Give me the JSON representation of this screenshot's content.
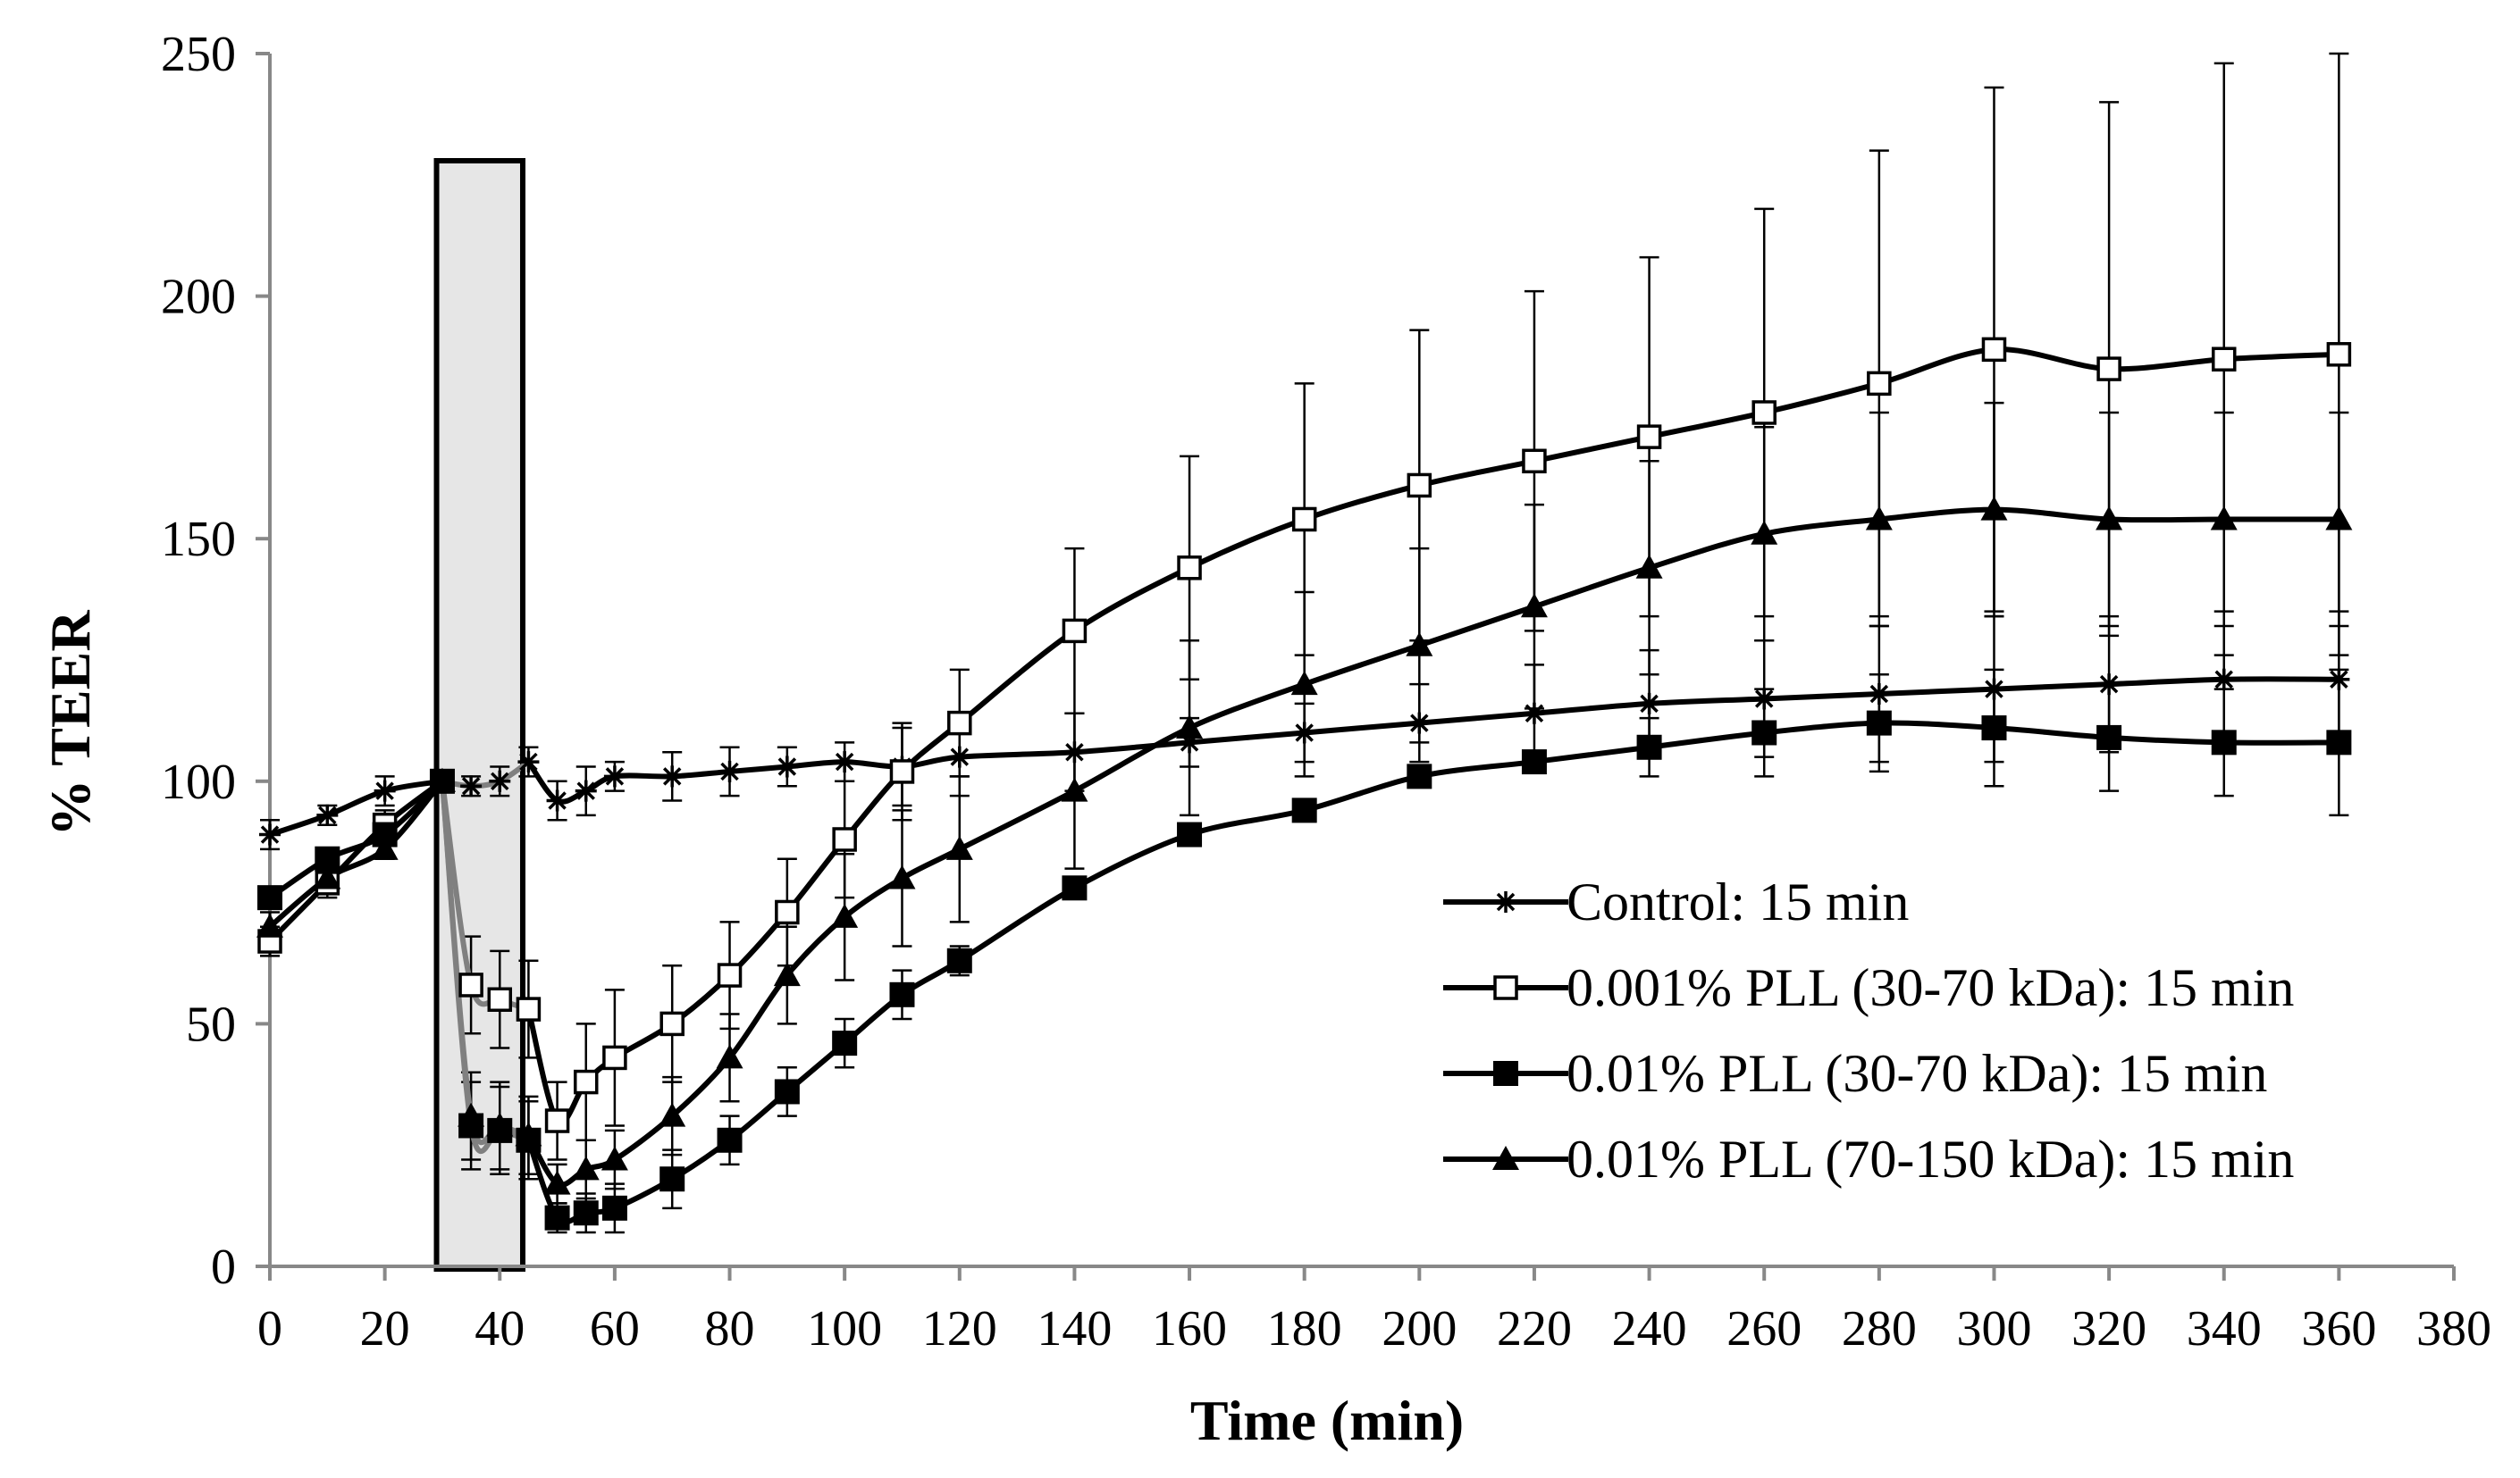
{
  "chart_data": {
    "type": "line",
    "title": "",
    "xlabel": "Time (min)",
    "ylabel": "% TEER",
    "xlim": [
      0,
      380
    ],
    "ylim": [
      0,
      250
    ],
    "xticks": [
      0,
      20,
      40,
      60,
      80,
      100,
      120,
      140,
      160,
      180,
      200,
      220,
      240,
      260,
      280,
      300,
      320,
      340,
      360,
      380
    ],
    "yticks": [
      0,
      50,
      100,
      150,
      200,
      250
    ],
    "grid": false,
    "legend_position": "lower-right",
    "treatment_window": {
      "start": 29,
      "end": 44,
      "fill": "#e6e6e6"
    },
    "series": [
      {
        "name": "Control: 15 min",
        "marker": "star",
        "x": [
          0,
          10,
          20,
          30,
          35,
          40,
          45,
          50,
          55,
          60,
          70,
          80,
          90,
          100,
          110,
          120,
          140,
          160,
          180,
          200,
          220,
          240,
          260,
          280,
          300,
          320,
          340,
          360
        ],
        "y": [
          89,
          93,
          98,
          100,
          99,
          100,
          104,
          96,
          98,
          101,
          101,
          102,
          103,
          104,
          103,
          105,
          106,
          108,
          110,
          112,
          114,
          116,
          117,
          118,
          119,
          120,
          121,
          121
        ],
        "err": [
          3,
          2,
          3,
          0,
          2,
          3,
          3,
          4,
          5,
          3,
          5,
          5,
          4,
          4,
          8,
          8,
          8,
          5,
          6,
          8,
          10,
          11,
          12,
          14,
          15,
          14,
          14,
          14
        ]
      },
      {
        "name": "0.001% PLL (30-70 kDa): 15 min",
        "marker": "open-square",
        "x": [
          0,
          10,
          20,
          30,
          35,
          40,
          45,
          50,
          55,
          60,
          70,
          80,
          90,
          100,
          110,
          120,
          140,
          160,
          180,
          200,
          220,
          240,
          260,
          280,
          300,
          320,
          340,
          360
        ],
        "y": [
          67,
          79,
          91,
          100,
          58,
          55,
          53,
          30,
          38,
          43,
          50,
          60,
          73,
          88,
          102,
          112,
          131,
          144,
          154,
          161,
          166,
          171,
          176,
          182,
          189,
          185,
          187,
          188
        ],
        "err": [
          3,
          3,
          3,
          0,
          10,
          10,
          10,
          8,
          12,
          14,
          12,
          11,
          11,
          12,
          10,
          11,
          17,
          23,
          28,
          32,
          35,
          37,
          42,
          48,
          54,
          55,
          61,
          62
        ]
      },
      {
        "name": "0.01% PLL (30-70 kDa): 15 min",
        "marker": "filled-square",
        "x": [
          0,
          10,
          20,
          30,
          35,
          40,
          45,
          50,
          55,
          60,
          70,
          80,
          90,
          100,
          110,
          120,
          140,
          160,
          180,
          200,
          220,
          240,
          260,
          280,
          300,
          320,
          340,
          360
        ],
        "y": [
          76,
          84,
          89,
          100,
          29,
          28,
          26,
          10,
          11,
          12,
          18,
          26,
          36,
          46,
          56,
          63,
          78,
          89,
          94,
          101,
          104,
          107,
          110,
          112,
          111,
          109,
          108,
          108
        ],
        "err": [
          2,
          2,
          2,
          0,
          9,
          9,
          8,
          3,
          4,
          5,
          6,
          5,
          5,
          5,
          5,
          3,
          2,
          2,
          2,
          2,
          2,
          6,
          9,
          10,
          12,
          11,
          11,
          15
        ]
      },
      {
        "name": "0.01% PLL (70-150 kDa): 15 min",
        "marker": "filled-triangle",
        "x": [
          0,
          10,
          20,
          30,
          35,
          40,
          45,
          50,
          55,
          60,
          70,
          80,
          90,
          100,
          110,
          120,
          140,
          160,
          180,
          200,
          220,
          240,
          260,
          280,
          300,
          320,
          340,
          360
        ],
        "y": [
          70,
          80,
          86,
          100,
          31,
          29,
          27,
          17,
          20,
          22,
          31,
          43,
          60,
          72,
          80,
          86,
          98,
          111,
          120,
          128,
          136,
          144,
          151,
          154,
          156,
          154,
          154,
          154
        ],
        "err": [
          3,
          2,
          2,
          0,
          9,
          9,
          8,
          4,
          6,
          6,
          8,
          9,
          10,
          13,
          14,
          15,
          16,
          18,
          19,
          20,
          21,
          22,
          22,
          22,
          22,
          22,
          22,
          22
        ]
      }
    ]
  }
}
